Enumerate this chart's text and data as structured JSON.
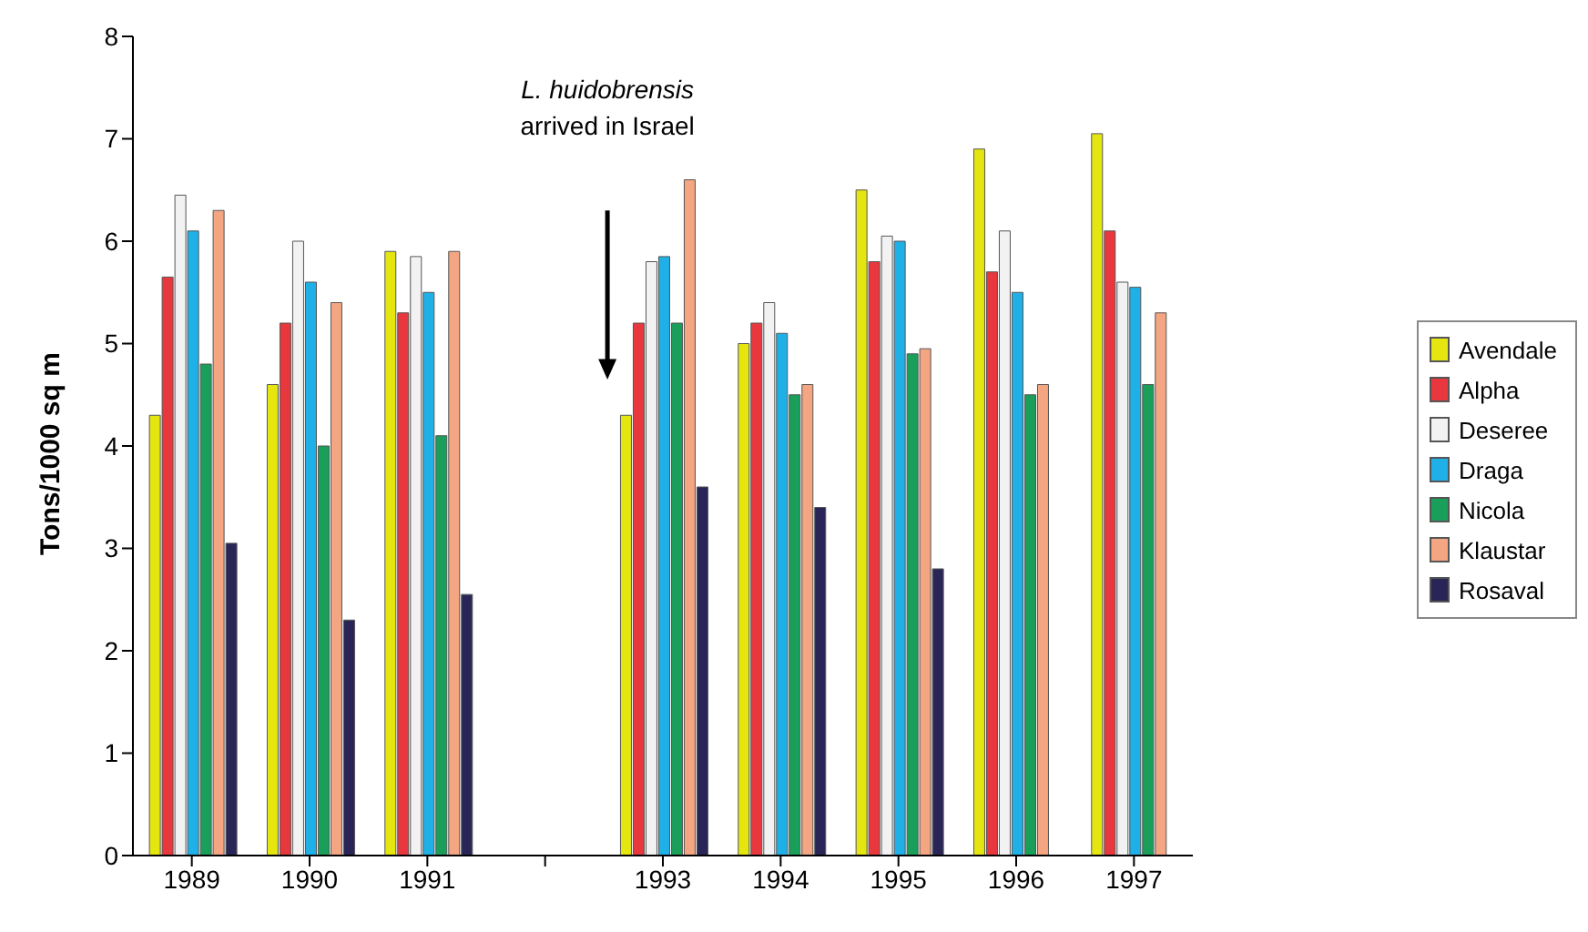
{
  "chart_data": {
    "type": "bar",
    "ylabel": "Tons/1000 sq m",
    "categories": [
      "1989",
      "1990",
      "1991",
      null,
      "1993",
      "1994",
      "1995",
      "1996",
      "1997"
    ],
    "series": [
      {
        "name": "Avendale",
        "color": "#e5e510",
        "values": [
          4.3,
          4.6,
          5.9,
          null,
          4.3,
          5.0,
          6.5,
          6.9,
          7.05
        ]
      },
      {
        "name": "Alpha",
        "color": "#e8383d",
        "values": [
          5.65,
          5.2,
          5.3,
          null,
          5.2,
          5.2,
          5.8,
          5.7,
          6.1
        ]
      },
      {
        "name": "Deseree",
        "color": "#f2f2f2",
        "values": [
          6.45,
          6.0,
          5.85,
          null,
          5.8,
          5.4,
          6.05,
          6.1,
          5.6
        ]
      },
      {
        "name": "Draga",
        "color": "#1fb0e8",
        "values": [
          6.1,
          5.6,
          5.5,
          null,
          5.85,
          5.1,
          6.0,
          5.5,
          5.55
        ]
      },
      {
        "name": "Nicola",
        "color": "#1a9f5a",
        "values": [
          4.8,
          4.0,
          4.1,
          null,
          5.2,
          4.5,
          4.9,
          4.5,
          4.6
        ]
      },
      {
        "name": "Klaustar",
        "color": "#f4a582",
        "values": [
          6.3,
          5.4,
          5.9,
          null,
          6.6,
          4.6,
          4.95,
          4.6,
          5.3
        ]
      },
      {
        "name": "Rosaval",
        "color": "#2a2557",
        "values": [
          3.05,
          2.3,
          2.55,
          null,
          3.6,
          3.4,
          2.8,
          null,
          null
        ]
      }
    ],
    "ylim": [
      0,
      8
    ],
    "yticks": [
      0,
      1,
      2,
      3,
      4,
      5,
      6,
      7,
      8
    ],
    "legend": "right",
    "annotations": [
      "L. huidobrensis",
      "arrived in Israel"
    ]
  }
}
